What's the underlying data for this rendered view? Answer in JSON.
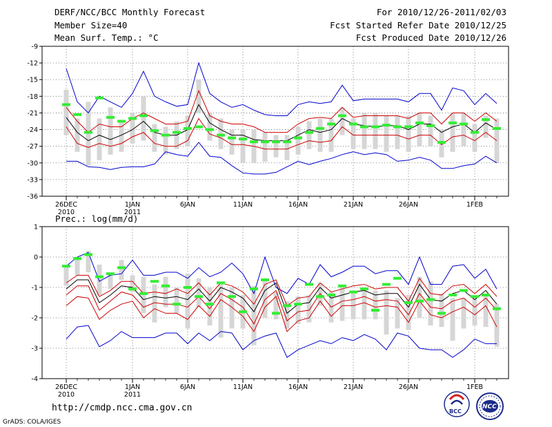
{
  "header": {
    "title": "DERF/NCC/BCC Monthly Forecast",
    "member_size": "Member Size=40",
    "variable": "Mean Surf. Temp.: °C",
    "period": "For 2010/12/26-2011/02/03",
    "started": "Fcst Started Refer Date 2010/12/25",
    "produced": "Fcst Produced Date 2010/12/26"
  },
  "footer": {
    "url": "http://cmdp.ncc.cma.gov.cn",
    "credit": "GrADS: COLA/IGES",
    "logo_bcc": "BCC",
    "logo_ncc": "NCC"
  },
  "colors": {
    "envelope": "#0000cc",
    "spread": "#cc0000",
    "mean": "#000000",
    "box": "#d6d6d6",
    "marker": "#33ee33"
  },
  "chart_data": [
    {
      "type": "line",
      "title": "Mean Surf. Temp.: °C",
      "n_days": 40,
      "ylim": [
        -36,
        -9
      ],
      "yticks": [
        -9,
        -12,
        -15,
        -18,
        -21,
        -24,
        -27,
        -30,
        -33,
        -36
      ],
      "ytick_labels": [
        "-9",
        "-12",
        "-15",
        "-18",
        "-21",
        "-24",
        "-27",
        "-30",
        "-33",
        "-36"
      ],
      "xticks": [
        {
          "day": 1,
          "label": "26DEC",
          "label2": "2010"
        },
        {
          "day": 7,
          "label": "1JAN",
          "label2": "2011"
        },
        {
          "day": 12,
          "label": "6JAN",
          "label2": ""
        },
        {
          "day": 17,
          "label": "11JAN",
          "label2": ""
        },
        {
          "day": 22,
          "label": "16JAN",
          "label2": ""
        },
        {
          "day": 27,
          "label": "21JAN",
          "label2": ""
        },
        {
          "day": 32,
          "label": "26JAN",
          "label2": ""
        },
        {
          "day": 38,
          "label": "1FEB",
          "label2": ""
        }
      ],
      "grid": true,
      "series": [
        {
          "name": "max",
          "values": [
            -13,
            -19,
            -21,
            -18,
            -19,
            -20,
            -17.5,
            -13.5,
            -18,
            -19,
            -19.8,
            -19.5,
            -12,
            -17.5,
            -19,
            -20,
            -19.5,
            -20.5,
            -21.3,
            -21.5,
            -21.5,
            -19.5,
            -19,
            -19.3,
            -19,
            -16,
            -18.8,
            -18.5,
            -18.5,
            -18.5,
            -18.5,
            -19,
            -17.5,
            -17.5,
            -20.5,
            -16.5,
            -17,
            -19.5,
            -17.5,
            -19.3
          ]
        },
        {
          "name": "upper",
          "values": [
            -20,
            -22.5,
            -24.5,
            -23,
            -23.5,
            -23.5,
            -22,
            -21,
            -22,
            -23,
            -23,
            -22.5,
            -17,
            -21.5,
            -22.5,
            -23,
            -23,
            -23.5,
            -24.5,
            -24.5,
            -24.5,
            -23,
            -22,
            -21.8,
            -22,
            -20,
            -21.8,
            -21.5,
            -21.5,
            -21.5,
            -21.5,
            -22,
            -21,
            -21,
            -23,
            -21,
            -21,
            -22.5,
            -21,
            -22.5
          ]
        },
        {
          "name": "mean",
          "values": [
            -21.8,
            -24.5,
            -26,
            -25,
            -25.8,
            -25,
            -24,
            -22.5,
            -24.5,
            -25,
            -25,
            -24,
            -19.5,
            -22.8,
            -24,
            -25,
            -25,
            -25.8,
            -26,
            -26,
            -26,
            -25,
            -24,
            -24.5,
            -24,
            -22,
            -23,
            -23.3,
            -23.5,
            -23.3,
            -23.3,
            -24,
            -23,
            -23,
            -24.5,
            -23.5,
            -23,
            -24.5,
            -22.8,
            -24
          ]
        },
        {
          "name": "lower",
          "values": [
            -23.5,
            -26.5,
            -27.2,
            -26.5,
            -27,
            -26.5,
            -25.3,
            -24.5,
            -26.5,
            -27,
            -27,
            -26,
            -22,
            -24.8,
            -25.5,
            -26.7,
            -26.7,
            -27,
            -27.5,
            -27.5,
            -27.5,
            -26.7,
            -26,
            -26.3,
            -26,
            -23.5,
            -25,
            -25,
            -25,
            -25,
            -25,
            -25.7,
            -25,
            -25,
            -26.7,
            -25.3,
            -25,
            -26,
            -24.5,
            -26
          ]
        },
        {
          "name": "min",
          "values": [
            -29.7,
            -29.7,
            -30.7,
            -30.8,
            -31.2,
            -30.8,
            -30.7,
            -30.7,
            -30.2,
            -28,
            -28.5,
            -28.8,
            -26.3,
            -28.8,
            -29,
            -30.5,
            -31.8,
            -32,
            -32,
            -31.7,
            -30.7,
            -29.7,
            -30.3,
            -29.7,
            -29.2,
            -28.5,
            -28,
            -28.5,
            -28.2,
            -28.5,
            -29.7,
            -29.5,
            -29,
            -29.5,
            -31,
            -31,
            -30.5,
            -30.2,
            -28.8,
            -30
          ]
        },
        {
          "name": "box_top",
          "values": [
            -16.8,
            -22,
            -19,
            -22,
            -20,
            -22.5,
            -21,
            -18,
            -23,
            -23.5,
            -22.5,
            -21.5,
            -15,
            -21,
            -22,
            -24,
            -24,
            -24,
            -24.5,
            -25,
            -25,
            -23.5,
            -22.5,
            -22,
            -22,
            -20,
            -22,
            -21,
            -21,
            -21.5,
            -21.5,
            -21.5,
            -21,
            -21.5,
            -24,
            -21,
            -21,
            -23,
            -21.5,
            -22
          ]
        },
        {
          "name": "box_bottom",
          "values": [
            -25,
            -28,
            -30.5,
            -29.5,
            -28.5,
            -28,
            -26.5,
            -26,
            -28,
            -28.5,
            -27.5,
            -27,
            -21,
            -26,
            -27.5,
            -28.5,
            -30,
            -30,
            -29.8,
            -29,
            -29.5,
            -28.5,
            -27.5,
            -28,
            -28,
            -25,
            -27.5,
            -27.5,
            -27.5,
            -28,
            -27.5,
            -28,
            -27,
            -27,
            -29,
            -28,
            -27,
            -28,
            -25.5,
            -30
          ]
        },
        {
          "name": "marker",
          "values": [
            -19.5,
            -21.3,
            -24.5,
            -18.3,
            -21.8,
            -22.5,
            -22,
            -21.5,
            -24.2,
            -25,
            -24.5,
            -23.8,
            -23.5,
            -24,
            -25,
            -25.5,
            -25.7,
            -26.2,
            -26.2,
            -26.2,
            -26.2,
            -25.5,
            -24.5,
            -23.8,
            -23,
            -21.5,
            -23,
            -23.5,
            -23.5,
            -23.2,
            -23.5,
            -23.5,
            -22.8,
            -23.3,
            -26.3,
            -22.8,
            -23,
            -24.5,
            -22.2,
            -23.8
          ]
        }
      ]
    },
    {
      "type": "line",
      "title": "Prec.: log(mm/d)",
      "n_days": 40,
      "ylim": [
        -4,
        1
      ],
      "yticks": [
        1,
        0,
        -1,
        -2,
        -3,
        -4
      ],
      "ytick_labels": [
        "1",
        "0",
        "-1",
        "-2",
        "-3",
        "-4"
      ],
      "xticks": [
        {
          "day": 1,
          "label": "26DEC",
          "label2": "2010"
        },
        {
          "day": 7,
          "label": "1JAN",
          "label2": "2011"
        },
        {
          "day": 12,
          "label": "6JAN",
          "label2": ""
        },
        {
          "day": 17,
          "label": "11JAN",
          "label2": ""
        },
        {
          "day": 22,
          "label": "16JAN",
          "label2": ""
        },
        {
          "day": 27,
          "label": "21JAN",
          "label2": ""
        },
        {
          "day": 32,
          "label": "26JAN",
          "label2": ""
        },
        {
          "day": 38,
          "label": "1FEB",
          "label2": ""
        }
      ],
      "grid": true,
      "series": [
        {
          "name": "max",
          "values": [
            -0.3,
            0,
            0.15,
            -0.8,
            -0.6,
            -0.55,
            -0.1,
            -0.6,
            -0.6,
            -0.5,
            -0.5,
            -0.7,
            -0.35,
            -0.65,
            -0.5,
            -0.2,
            -0.55,
            -1.2,
            0,
            -1,
            -1.2,
            -0.7,
            -0.9,
            -0.25,
            -0.65,
            -0.5,
            -0.3,
            -0.3,
            -0.55,
            -0.45,
            -0.45,
            -0.9,
            0,
            -0.9,
            -0.9,
            -0.3,
            -0.25,
            -0.7,
            -0.4,
            -1.05
          ]
        },
        {
          "name": "upper",
          "values": [
            -0.85,
            -0.6,
            -0.6,
            -1.3,
            -1.1,
            -0.8,
            -0.8,
            -1.2,
            -1.15,
            -1.2,
            -1.05,
            -1.2,
            -0.85,
            -1.25,
            -0.85,
            -0.95,
            -1.15,
            -1.55,
            -0.9,
            -0.75,
            -1.6,
            -1.35,
            -1.3,
            -0.85,
            -1.15,
            -1.05,
            -0.95,
            -0.9,
            -1.05,
            -1,
            -1,
            -1.45,
            -0.7,
            -1.2,
            -1.25,
            -0.95,
            -0.9,
            -1.2,
            -0.9,
            -1.3
          ]
        },
        {
          "name": "mean",
          "values": [
            -1.05,
            -0.75,
            -0.75,
            -1.5,
            -1.25,
            -0.95,
            -1,
            -1.4,
            -1.3,
            -1.35,
            -1.3,
            -1.4,
            -1.05,
            -1.45,
            -1,
            -1.15,
            -1.35,
            -1.8,
            -1.1,
            -0.85,
            -1.85,
            -1.55,
            -1.5,
            -1,
            -1.35,
            -1.25,
            -1.15,
            -1.1,
            -1.25,
            -1.2,
            -1.2,
            -1.65,
            -0.9,
            -1.4,
            -1.45,
            -1.2,
            -1.1,
            -1.4,
            -1.1,
            -1.55
          ]
        },
        {
          "name": "lower",
          "values": [
            -1.25,
            -0.95,
            -0.95,
            -1.75,
            -1.45,
            -1.15,
            -1.25,
            -1.65,
            -1.5,
            -1.55,
            -1.55,
            -1.65,
            -1.3,
            -1.7,
            -1.2,
            -1.4,
            -1.65,
            -2.2,
            -1.4,
            -1.1,
            -2.1,
            -1.8,
            -1.75,
            -1.2,
            -1.65,
            -1.45,
            -1.4,
            -1.3,
            -1.45,
            -1.4,
            -1.45,
            -1.9,
            -1.2,
            -1.65,
            -1.7,
            -1.45,
            -1.35,
            -1.65,
            -1.35,
            -1.75
          ]
        },
        {
          "name": "mean_red",
          "values": [
            -1.6,
            -1.3,
            -1.35,
            -2.05,
            -1.75,
            -1.55,
            -1.45,
            -2,
            -1.7,
            -1.85,
            -1.85,
            -2.05,
            -1.6,
            -1.95,
            -1.4,
            -1.65,
            -1.95,
            -2.45,
            -1.65,
            -1.3,
            -2.45,
            -2.1,
            -2,
            -1.45,
            -1.95,
            -1.6,
            -1.6,
            -1.5,
            -1.65,
            -1.6,
            -1.65,
            -2.15,
            -1.45,
            -1.9,
            -2,
            -1.8,
            -1.65,
            -1.9,
            -1.6,
            -2.3
          ]
        },
        {
          "name": "min",
          "values": [
            -2.7,
            -2.3,
            -2.25,
            -2.95,
            -2.75,
            -2.45,
            -2.65,
            -2.65,
            -2.65,
            -2.5,
            -2.5,
            -2.85,
            -2.5,
            -2.75,
            -2.45,
            -2.5,
            -3.05,
            -2.75,
            -2.6,
            -2.5,
            -3.3,
            -3.05,
            -2.9,
            -2.75,
            -2.85,
            -2.65,
            -2.75,
            -2.55,
            -2.7,
            -3.05,
            -2.5,
            -2.6,
            -3,
            -3.05,
            -3.05,
            -3.3,
            -3.05,
            -2.7,
            -2.85,
            -2.85
          ]
        },
        {
          "name": "box_top",
          "values": [
            -0.25,
            0,
            0.2,
            -0.25,
            -0.55,
            -0.1,
            -0.6,
            -0.65,
            -0.9,
            -0.65,
            -1,
            -0.55,
            -0.7,
            -1,
            -0.9,
            -1,
            -1.25,
            -0.95,
            -0.7,
            -1.15,
            -1.45,
            -1.3,
            -1.25,
            -0.85,
            -1.15,
            -1,
            -1.1,
            -1,
            -1.1,
            -1.1,
            -1.35,
            -1.25,
            -0.65,
            -0.8,
            -1.2,
            -1.35,
            -1.35,
            -1.35,
            -1.25,
            -1.55
          ]
        },
        {
          "name": "box_bottom",
          "values": [
            -0.95,
            -0.6,
            -0.5,
            -1.25,
            -1.05,
            -0.75,
            -1.15,
            -1.85,
            -2.15,
            -1.65,
            -1.85,
            -2.35,
            -1.65,
            -2.25,
            -2.65,
            -2.35,
            -2.35,
            -2.9,
            -2,
            -2.05,
            -2.35,
            -2.2,
            -2.15,
            -1.6,
            -2.15,
            -2.1,
            -2.05,
            -2.05,
            -2.05,
            -2.55,
            -2.35,
            -2.4,
            -2,
            -2.25,
            -2.3,
            -2.75,
            -2.35,
            -2.25,
            -2.3,
            -2.95
          ]
        },
        {
          "name": "marker",
          "values": [
            -0.3,
            -0.05,
            0.08,
            -0.65,
            -0.55,
            -0.35,
            -1.05,
            -1.2,
            -0.8,
            -0.95,
            -1.55,
            -1.0,
            -1.3,
            -1.55,
            -0.85,
            -1.3,
            -1.8,
            -1.05,
            -0.75,
            -1.85,
            -1.6,
            -1.55,
            -0.9,
            -1.3,
            -1.25,
            -0.95,
            -1.15,
            -1.05,
            -1.75,
            -0.9,
            -0.7,
            -1.5,
            -1.45,
            -1.4,
            -1.85,
            -1.25,
            -1.1,
            -1.3,
            -1.25,
            -1.7
          ]
        }
      ]
    }
  ]
}
